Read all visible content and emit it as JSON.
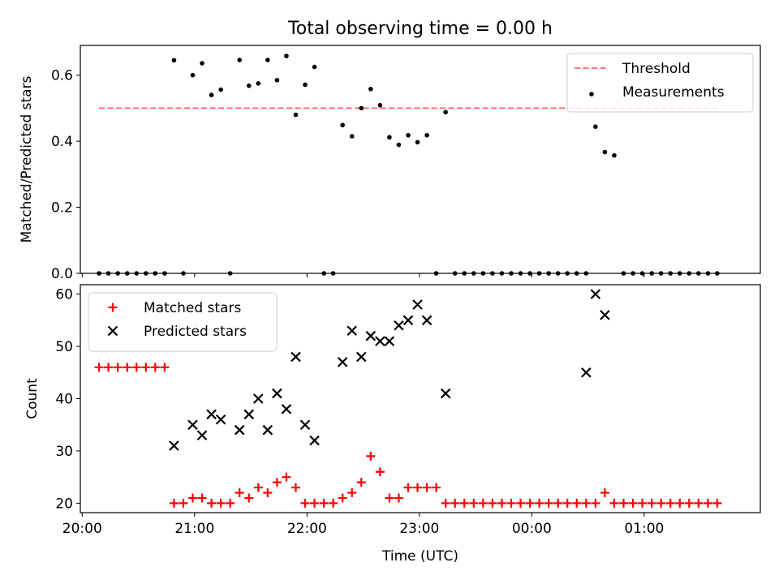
{
  "figure": {
    "title": "Total observing time = 0.00 h"
  },
  "chart_data": [
    {
      "type": "scatter",
      "ylabel": "Matched/Predicted stars",
      "xlabel": "",
      "xlim": [
        "19:59",
        "02:02"
      ],
      "ylim": [
        0,
        0.69
      ],
      "yticks": [
        0.0,
        0.2,
        0.4,
        0.6
      ],
      "ytick_labels": [
        "0.0",
        "0.2",
        "0.4",
        "0.6"
      ],
      "xtick_labels": [
        "",
        "",
        "",
        "",
        "",
        ""
      ],
      "legend": {
        "placement": "upper right",
        "entries": [
          {
            "label": "Threshold",
            "marker": "dashed-line",
            "color": "#ff7373"
          },
          {
            "label": "Measurements",
            "marker": "dot",
            "color": "#000000"
          }
        ]
      },
      "series": [
        {
          "name": "Threshold",
          "style": "dashed-line",
          "color": "#ff7373",
          "x": [
            "20:09",
            "01:39"
          ],
          "y": [
            0.5,
            0.5
          ]
        },
        {
          "name": "Measurements",
          "style": "dot",
          "color": "#000000",
          "x": [
            "20:09",
            "20:14",
            "20:19",
            "20:24",
            "20:29",
            "20:34",
            "20:39",
            "20:44",
            "20:49",
            "20:54",
            "20:59",
            "21:04",
            "21:09",
            "21:14",
            "21:19",
            "21:24",
            "21:29",
            "21:34",
            "21:39",
            "21:44",
            "21:49",
            "21:54",
            "21:59",
            "22:04",
            "22:09",
            "22:14",
            "22:19",
            "22:24",
            "22:29",
            "22:34",
            "22:39",
            "22:44",
            "22:49",
            "22:54",
            "22:59",
            "23:04",
            "23:09",
            "23:14",
            "23:19",
            "23:24",
            "23:29",
            "23:34",
            "23:39",
            "23:44",
            "23:49",
            "23:54",
            "23:59",
            "00:04",
            "00:09",
            "00:14",
            "00:19",
            "00:24",
            "00:29",
            "00:34",
            "00:39",
            "00:44",
            "00:49",
            "00:54",
            "00:59",
            "01:04",
            "01:09",
            "01:14",
            "01:19",
            "01:24",
            "01:29",
            "01:34",
            "01:39"
          ],
          "y": [
            0,
            0,
            0,
            0,
            0,
            0,
            0,
            0,
            0.645,
            0,
            0.6,
            0.636,
            0.54,
            0.556,
            0,
            0.646,
            0.568,
            0.575,
            0.646,
            0.585,
            0.658,
            0.48,
            0.571,
            0.625,
            0,
            0,
            0.449,
            0.415,
            0.5,
            0.558,
            0.509,
            0.412,
            0.389,
            0.418,
            0.397,
            0.418,
            0,
            0.488,
            0,
            0,
            0,
            0,
            0,
            0,
            0,
            0,
            0,
            0,
            0,
            0,
            0,
            0,
            0,
            0.444,
            0.367,
            0.357,
            0,
            0,
            0,
            0,
            0,
            0,
            0,
            0,
            0,
            0,
            0
          ]
        }
      ]
    },
    {
      "type": "scatter",
      "ylabel": "Count",
      "xlabel": "Time (UTC)",
      "xlim": [
        "19:59",
        "02:02"
      ],
      "ylim": [
        18.2,
        61.8
      ],
      "yticks": [
        20,
        30,
        40,
        50,
        60
      ],
      "ytick_labels": [
        "20",
        "30",
        "40",
        "50",
        "60"
      ],
      "xticks": [
        "20:00",
        "21:00",
        "22:00",
        "23:00",
        "00:00",
        "01:00"
      ],
      "xtick_labels": [
        "20:00",
        "21:00",
        "22:00",
        "23:00",
        "00:00",
        "01:00"
      ],
      "legend": {
        "placement": "upper left",
        "entries": [
          {
            "label": "Matched stars",
            "marker": "plus",
            "color": "#ff0000"
          },
          {
            "label": "Predicted stars",
            "marker": "x",
            "color": "#000000"
          }
        ]
      },
      "series": [
        {
          "name": "Matched stars",
          "style": "plus",
          "color": "#ff0000",
          "x": [
            "20:09",
            "20:14",
            "20:19",
            "20:24",
            "20:29",
            "20:34",
            "20:39",
            "20:44",
            "20:49",
            "20:54",
            "20:59",
            "21:04",
            "21:09",
            "21:14",
            "21:19",
            "21:24",
            "21:29",
            "21:34",
            "21:39",
            "21:44",
            "21:49",
            "21:54",
            "21:59",
            "22:04",
            "22:09",
            "22:14",
            "22:19",
            "22:24",
            "22:29",
            "22:34",
            "22:39",
            "22:44",
            "22:49",
            "22:54",
            "22:59",
            "23:04",
            "23:09",
            "23:14",
            "23:19",
            "23:24",
            "23:29",
            "23:34",
            "23:39",
            "23:44",
            "23:49",
            "23:54",
            "23:59",
            "00:04",
            "00:09",
            "00:14",
            "00:19",
            "00:24",
            "00:29",
            "00:34",
            "00:39",
            "00:44",
            "00:49",
            "00:54",
            "00:59",
            "01:04",
            "01:09",
            "01:14",
            "01:19",
            "01:24",
            "01:29",
            "01:34",
            "01:39"
          ],
          "y": [
            46,
            46,
            46,
            46,
            46,
            46,
            46,
            46,
            20,
            20,
            21,
            21,
            20,
            20,
            20,
            22,
            21,
            23,
            22,
            24,
            25,
            23,
            20,
            20,
            20,
            20,
            21,
            22,
            24,
            29,
            26,
            21,
            21,
            23,
            23,
            23,
            23,
            20,
            20,
            20,
            20,
            20,
            20,
            20,
            20,
            20,
            20,
            20,
            20,
            20,
            20,
            20,
            20,
            20,
            22,
            20,
            20,
            20,
            20,
            20,
            20,
            20,
            20,
            20,
            20,
            20,
            20
          ]
        },
        {
          "name": "Predicted stars",
          "style": "x",
          "color": "#000000",
          "x": [
            "20:49",
            "20:59",
            "21:04",
            "21:09",
            "21:14",
            "21:24",
            "21:29",
            "21:34",
            "21:39",
            "21:44",
            "21:49",
            "21:54",
            "21:59",
            "22:04",
            "22:19",
            "22:24",
            "22:29",
            "22:34",
            "22:39",
            "22:44",
            "22:49",
            "22:54",
            "22:59",
            "23:04",
            "23:14",
            "00:29",
            "00:34",
            "00:39"
          ],
          "y": [
            31,
            35,
            33,
            37,
            36,
            34,
            37,
            40,
            34,
            41,
            38,
            48,
            35,
            32,
            47,
            53,
            48,
            52,
            51,
            51,
            54,
            55,
            58,
            55,
            41,
            45,
            60,
            56
          ]
        }
      ]
    }
  ]
}
